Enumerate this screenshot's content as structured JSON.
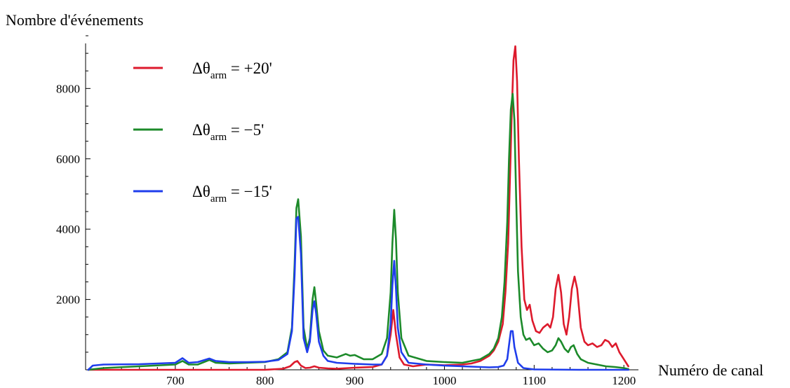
{
  "chart_data": {
    "type": "line",
    "title": "",
    "ylabel": "Nombre d'événements",
    "xlabel": "Numéro de canal",
    "xlim": [
      600,
      1210
    ],
    "ylim": [
      0,
      9600
    ],
    "x_ticks": [
      700,
      800,
      900,
      1000,
      1100,
      1200
    ],
    "y_ticks": [
      2000,
      4000,
      6000,
      8000
    ],
    "x_tick_labels": [
      "700",
      "800",
      "900",
      "1000",
      "1100",
      "1200"
    ],
    "y_tick_labels": [
      "2000",
      "4000",
      "6000",
      "8000"
    ],
    "grid": false,
    "legend_position": "top-left",
    "series": [
      {
        "name": "Δθarm = +20'",
        "legend_main": "Δθ",
        "legend_sub": "arm",
        "legend_rest": " = +20'",
        "color": "#dd1a2c",
        "x": [
          603,
          640,
          680,
          720,
          760,
          800,
          820,
          828,
          833,
          836,
          840,
          845,
          850,
          855,
          860,
          870,
          880,
          900,
          920,
          930,
          936,
          940,
          943,
          946,
          950,
          955,
          965,
          980,
          1000,
          1020,
          1030,
          1040,
          1050,
          1055,
          1060,
          1065,
          1068,
          1071,
          1073,
          1075,
          1077,
          1079,
          1081,
          1083,
          1086,
          1089,
          1092,
          1095,
          1098,
          1102,
          1106,
          1110,
          1115,
          1118,
          1121,
          1124,
          1127,
          1130,
          1133,
          1136,
          1139,
          1142,
          1145,
          1148,
          1152,
          1156,
          1160,
          1165,
          1170,
          1175,
          1179,
          1183,
          1187,
          1191,
          1195,
          1200,
          1205
        ],
        "y": [
          0,
          0,
          0,
          0,
          0,
          0,
          30,
          100,
          220,
          250,
          120,
          50,
          60,
          100,
          60,
          40,
          30,
          60,
          80,
          150,
          400,
          1000,
          1700,
          1000,
          350,
          150,
          100,
          150,
          130,
          150,
          180,
          250,
          400,
          550,
          800,
          1300,
          2200,
          3600,
          5400,
          7300,
          8800,
          9200,
          8200,
          6000,
          3500,
          2000,
          1700,
          1850,
          1400,
          1100,
          1050,
          1200,
          1300,
          1200,
          1500,
          2300,
          2700,
          2200,
          1300,
          1000,
          1500,
          2300,
          2650,
          2300,
          1200,
          800,
          700,
          750,
          650,
          700,
          850,
          800,
          650,
          750,
          500,
          300,
          100
        ]
      },
      {
        "name": "Δθarm = −5'",
        "legend_main": "Δθ",
        "legend_sub": "arm",
        "legend_rest": " = −5'",
        "color": "#1c8a2a",
        "x": [
          603,
          620,
          660,
          700,
          708,
          715,
          725,
          738,
          745,
          760,
          780,
          800,
          815,
          825,
          830,
          833,
          835,
          837,
          840,
          843,
          847,
          850,
          853,
          855,
          857,
          860,
          865,
          870,
          880,
          890,
          895,
          900,
          910,
          920,
          930,
          936,
          940,
          942,
          944,
          946,
          948,
          952,
          960,
          980,
          1000,
          1020,
          1030,
          1040,
          1050,
          1055,
          1060,
          1064,
          1067,
          1070,
          1072,
          1074,
          1076,
          1078,
          1080,
          1082,
          1085,
          1088,
          1091,
          1095,
          1100,
          1105,
          1110,
          1115,
          1120,
          1124,
          1127,
          1130,
          1134,
          1138,
          1141,
          1144,
          1148,
          1152,
          1160,
          1170,
          1180,
          1190,
          1200,
          1205
        ],
        "y": [
          0,
          50,
          100,
          150,
          250,
          150,
          150,
          280,
          200,
          180,
          200,
          220,
          300,
          500,
          1200,
          3000,
          4600,
          4850,
          3800,
          1200,
          600,
          900,
          2000,
          2350,
          1900,
          1100,
          550,
          400,
          350,
          450,
          400,
          420,
          300,
          300,
          450,
          900,
          2200,
          3600,
          4550,
          3700,
          2200,
          900,
          400,
          250,
          220,
          200,
          250,
          300,
          450,
          600,
          900,
          1500,
          2500,
          4200,
          6000,
          7400,
          7850,
          7100,
          4800,
          2800,
          1500,
          1000,
          850,
          900,
          700,
          750,
          600,
          500,
          550,
          700,
          900,
          800,
          600,
          500,
          650,
          700,
          450,
          300,
          200,
          150,
          100,
          80,
          50,
          20
        ]
      },
      {
        "name": "Δθarm = −15'",
        "legend_main": "Δθ",
        "legend_sub": "arm",
        "legend_rest": " = −15'",
        "color": "#1f3dec",
        "x": [
          603,
          608,
          620,
          660,
          700,
          708,
          715,
          725,
          738,
          745,
          760,
          780,
          800,
          815,
          825,
          830,
          833,
          835,
          837,
          840,
          843,
          847,
          850,
          853,
          855,
          857,
          860,
          865,
          870,
          880,
          900,
          920,
          930,
          936,
          940,
          942,
          944,
          946,
          948,
          952,
          960,
          980,
          1000,
          1020,
          1040,
          1050,
          1060,
          1066,
          1070,
          1072,
          1074,
          1076,
          1078,
          1082,
          1088,
          1100,
          1150,
          1200,
          1205
        ],
        "y": [
          0,
          120,
          150,
          160,
          200,
          330,
          200,
          220,
          320,
          250,
          220,
          220,
          230,
          280,
          450,
          1100,
          2700,
          4300,
          4350,
          3300,
          900,
          500,
          800,
          1700,
          1950,
          1600,
          800,
          400,
          250,
          200,
          170,
          150,
          150,
          400,
          1300,
          2400,
          3100,
          2300,
          1200,
          500,
          200,
          150,
          120,
          100,
          80,
          70,
          80,
          120,
          300,
          700,
          1100,
          1100,
          650,
          200,
          50,
          10,
          0,
          0,
          0
        ]
      }
    ]
  }
}
